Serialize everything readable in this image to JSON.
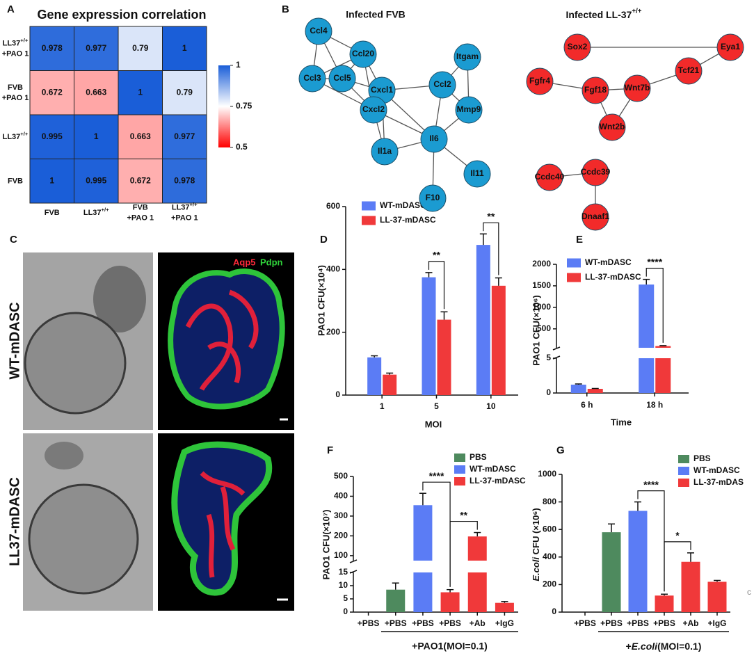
{
  "chart_data": [
    {
      "type": "heatmap",
      "panel": "A",
      "title": "Gene expression correlation",
      "x_categories": [
        [
          [
            "FVB"
          ]
        ],
        [
          [
            "LL37",
            {
              "sup": "+/+"
            }
          ]
        ],
        [
          [
            "FVB"
          ],
          [
            "+PAO 1"
          ]
        ],
        [
          [
            "LL37",
            {
              "sup": "+/+"
            }
          ],
          [
            "+PAO 1"
          ]
        ]
      ],
      "y_categories": [
        [
          [
            "LL37",
            {
              "sup": "+/+"
            }
          ],
          [
            "+PAO 1"
          ]
        ],
        [
          [
            "FVB"
          ],
          [
            "+PAO 1"
          ]
        ],
        [
          [
            "LL37",
            {
              "sup": "+/+"
            }
          ]
        ],
        [
          [
            "FVB"
          ]
        ]
      ],
      "values": [
        [
          0.978,
          0.977,
          0.79,
          1
        ],
        [
          0.672,
          0.663,
          1,
          0.79
        ],
        [
          0.995,
          1,
          0.663,
          0.977
        ],
        [
          1,
          0.995,
          0.672,
          0.978
        ]
      ],
      "zlim": [
        0.5,
        1
      ],
      "zticks": [
        0.5,
        0.75,
        1
      ],
      "colors": [
        "#ff0000",
        "#ffffff",
        "#1a5ed8"
      ]
    },
    {
      "type": "bar",
      "panel": "D",
      "categories": [
        "1",
        "5",
        "10"
      ],
      "xlabel": "MOI",
      "ylabel": "PAO1 CFU(×10⁴)",
      "ylim": [
        0,
        600
      ],
      "yticks": [
        0,
        200,
        400,
        600
      ],
      "series": [
        {
          "name": "WT-mDASC",
          "color": "#5b7cf5",
          "values": [
            120,
            375,
            478
          ],
          "errors": [
            5,
            15,
            35
          ]
        },
        {
          "name": "LL-37-mDASC",
          "color": "#f0393a",
          "values": [
            65,
            240,
            348
          ],
          "errors": [
            5,
            25,
            25
          ]
        }
      ],
      "annotations": [
        "**",
        "**"
      ]
    },
    {
      "type": "bar",
      "panel": "E",
      "categories": [
        "6 h",
        "18 h"
      ],
      "xlabel": "Time",
      "ylabel": "PAO1 CFU(×10⁶)",
      "segments": [
        {
          "ylim": [
            0,
            5
          ],
          "yticks": [
            0,
            5
          ]
        },
        {
          "ylim": [
            60,
            2000
          ],
          "yticks": [
            500,
            1000,
            1500,
            2000
          ]
        }
      ],
      "series": [
        {
          "name": "WT-mDASC",
          "color": "#5b7cf5",
          "values": [
            1.2,
            1530
          ],
          "errors": [
            0.1,
            120
          ]
        },
        {
          "name": "LL-37-mDASC",
          "color": "#f0393a",
          "values": [
            0.6,
            100
          ],
          "errors": [
            0.05,
            10
          ]
        }
      ],
      "annotations": [
        "****"
      ]
    },
    {
      "type": "bar",
      "panel": "F",
      "categories": [
        "+PBS",
        "+PBS",
        "+PBS",
        "+PBS",
        "+Ab",
        "+IgG"
      ],
      "ylabel": "PAO1 CFU(×10⁷)",
      "group_label": "+PAO1(MOI=0.1)",
      "segments": [
        {
          "ylim": [
            0,
            15
          ],
          "yticks": [
            0,
            5,
            10,
            15
          ]
        },
        {
          "ylim": [
            75,
            500
          ],
          "yticks": [
            100,
            200,
            300,
            400,
            500
          ]
        }
      ],
      "series": [
        {
          "name": "PBS",
          "color": "#4e8a5e",
          "values": [
            null,
            8.5,
            null,
            null,
            null,
            null
          ],
          "errors": [
            null,
            2.5,
            null,
            null,
            null,
            null
          ]
        },
        {
          "name": "WT-mDASC",
          "color": "#5b7cf5",
          "values": [
            null,
            null,
            355,
            null,
            null,
            null
          ],
          "errors": [
            null,
            null,
            60,
            null,
            null,
            null
          ]
        },
        {
          "name": "LL-37-mDASC",
          "color": "#f0393a",
          "values": [
            null,
            null,
            null,
            7.5,
            197,
            3.5
          ],
          "errors": [
            null,
            null,
            null,
            1,
            20,
            0.5
          ]
        }
      ],
      "annotations": [
        "****",
        "**"
      ]
    },
    {
      "type": "bar",
      "panel": "G",
      "categories": [
        "+PBS",
        "+PBS",
        "+PBS",
        "+PBS",
        "+Ab",
        "+IgG"
      ],
      "ylabel": [
        [
          {
            "i": "E.coli"
          },
          " CFU (×10⁶)"
        ]
      ],
      "group_label": [
        [
          "+",
          {
            "i": "E.coli"
          },
          "(MOI=0.1)"
        ]
      ],
      "ylim": [
        0,
        1000
      ],
      "yticks": [
        0,
        200,
        400,
        600,
        800,
        1000
      ],
      "series": [
        {
          "name": "PBS",
          "color": "#4e8a5e",
          "values": [
            null,
            580,
            null,
            null,
            null,
            null
          ],
          "errors": [
            null,
            60,
            null,
            null,
            null,
            null
          ]
        },
        {
          "name": "WT-mDASC",
          "color": "#5b7cf5",
          "values": [
            null,
            null,
            735,
            null,
            null,
            null
          ],
          "errors": [
            null,
            null,
            65,
            null,
            null,
            null
          ]
        },
        {
          "name": "LL-37-mDAS",
          "color": "#f0393a",
          "values": [
            null,
            null,
            null,
            120,
            365,
            220
          ],
          "errors": [
            null,
            null,
            null,
            10,
            65,
            10
          ]
        }
      ],
      "annotations": [
        "****",
        "*"
      ]
    }
  ],
  "networks": {
    "panel": "B",
    "graphs": [
      {
        "title": "Infected FVB",
        "color": "#1b9bd1",
        "nodes": [
          "Ccl4",
          "Ccl20",
          "Itgam",
          "Ccl3",
          "Ccl5",
          "Cxcl1",
          "Ccl2",
          "Cxcl2",
          "Mmp9",
          "Il6",
          "Il1a",
          "Il11",
          "F10"
        ],
        "edges": [
          [
            "Ccl4",
            "Ccl20"
          ],
          [
            "Ccl4",
            "Ccl3"
          ],
          [
            "Ccl4",
            "Ccl5"
          ],
          [
            "Ccl20",
            "Ccl3"
          ],
          [
            "Ccl20",
            "Ccl5"
          ],
          [
            "Ccl20",
            "Cxcl1"
          ],
          [
            "Ccl20",
            "Cxcl2"
          ],
          [
            "Ccl3",
            "Ccl5"
          ],
          [
            "Ccl3",
            "Cxcl2"
          ],
          [
            "Ccl5",
            "Cxcl1"
          ],
          [
            "Ccl5",
            "Cxcl2"
          ],
          [
            "Cxcl1",
            "Cxcl2"
          ],
          [
            "Cxcl1",
            "Ccl2"
          ],
          [
            "Cxcl1",
            "Il6"
          ],
          [
            "Cxcl1",
            "Il1a"
          ],
          [
            "Cxcl2",
            "Il6"
          ],
          [
            "Cxcl2",
            "Il1a"
          ],
          [
            "Ccl2",
            "Il6"
          ],
          [
            "Ccl2",
            "Itgam"
          ],
          [
            "Ccl2",
            "Mmp9"
          ],
          [
            "Itgam",
            "Mmp9"
          ],
          [
            "Mmp9",
            "Il6"
          ],
          [
            "Il6",
            "Il1a"
          ],
          [
            "Il6",
            "Il11"
          ],
          [
            "Il6",
            "F10"
          ]
        ]
      },
      {
        "title": [
          [
            "Infected  LL-37",
            {
              "sup": "+/+"
            }
          ]
        ],
        "color": "#f22a2a",
        "nodes": [
          "Sox2",
          "Eya1",
          "Tcf21",
          "Fgfr4",
          "Fgf18",
          "Wnt7b",
          "Wnt2b",
          "Ccdc40",
          "Ccdc39",
          "Dnaaf1"
        ],
        "edges": [
          [
            "Sox2",
            "Eya1"
          ],
          [
            "Eya1",
            "Tcf21"
          ],
          [
            "Tcf21",
            "Wnt7b"
          ],
          [
            "Fgfr4",
            "Fgf18"
          ],
          [
            "Fgf18",
            "Wnt7b"
          ],
          [
            "Fgf18",
            "Wnt2b"
          ],
          [
            "Wnt7b",
            "Wnt2b"
          ],
          [
            "Ccdc40",
            "Ccdc39"
          ],
          [
            "Ccdc39",
            "Dnaaf1"
          ]
        ]
      }
    ]
  },
  "images": {
    "panel": "C",
    "row_labels": [
      "WT-mDASC",
      "LL37-mDASC"
    ],
    "stains": [
      {
        "text": "Aqp5",
        "color": "#ff2a3a"
      },
      {
        "text": "Pdpn",
        "color": "#2fd13a"
      }
    ]
  },
  "margin_note": "c"
}
